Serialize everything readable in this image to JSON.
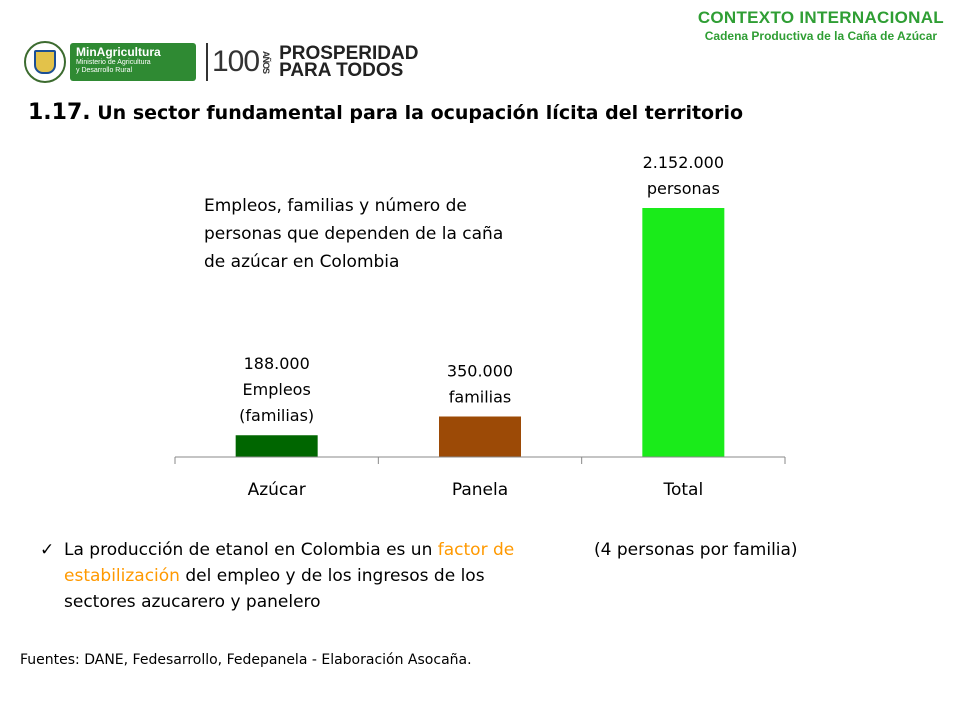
{
  "header": {
    "context_title": "CONTEXTO INTERNACIONAL",
    "context_subtitle": "Cadena Productiva de la Caña de Azúcar",
    "ministry_name": "MinAgricultura",
    "ministry_desc_1": "Ministerio de Agricultura",
    "ministry_desc_2": "y Desarrollo Rural",
    "centenary_number": "100",
    "centenary_word": "AÑOS",
    "slogan_line1": "PROSPERIDAD",
    "slogan_line2": "PARA TODOS"
  },
  "slide": {
    "title_number": "1.17.",
    "title_text": " Un sector fundamental para la ocupación lícita del territorio"
  },
  "chart_data": {
    "type": "bar",
    "title": "Empleos, familias y número de personas que dependen de la caña de azúcar en Colombia",
    "categories": [
      "Azúcar",
      "Panela",
      "Total"
    ],
    "values": [
      188000,
      350000,
      2152000
    ],
    "data_labels": [
      [
        "188.000",
        "Empleos",
        "(familias)"
      ],
      [
        "350.000",
        "familias"
      ],
      [
        "2.152.000",
        "personas"
      ]
    ],
    "colors": [
      "#006600",
      "#9c4a06",
      "#1aeb1a"
    ],
    "ylim": [
      0,
      2152000
    ],
    "grid": false,
    "legend": "none"
  },
  "bullet": {
    "text_before": "La producción de etanol en Colombia es un ",
    "highlight": "factor de estabilización",
    "text_after": " del empleo y de los ingresos de los sectores azucarero y panelero",
    "highlight_color": "#ff9900"
  },
  "note": "(4 personas por familia)",
  "source": "Fuentes: DANE, Fedesarrollo, Fedepanela -  Elaboración Asocaña."
}
